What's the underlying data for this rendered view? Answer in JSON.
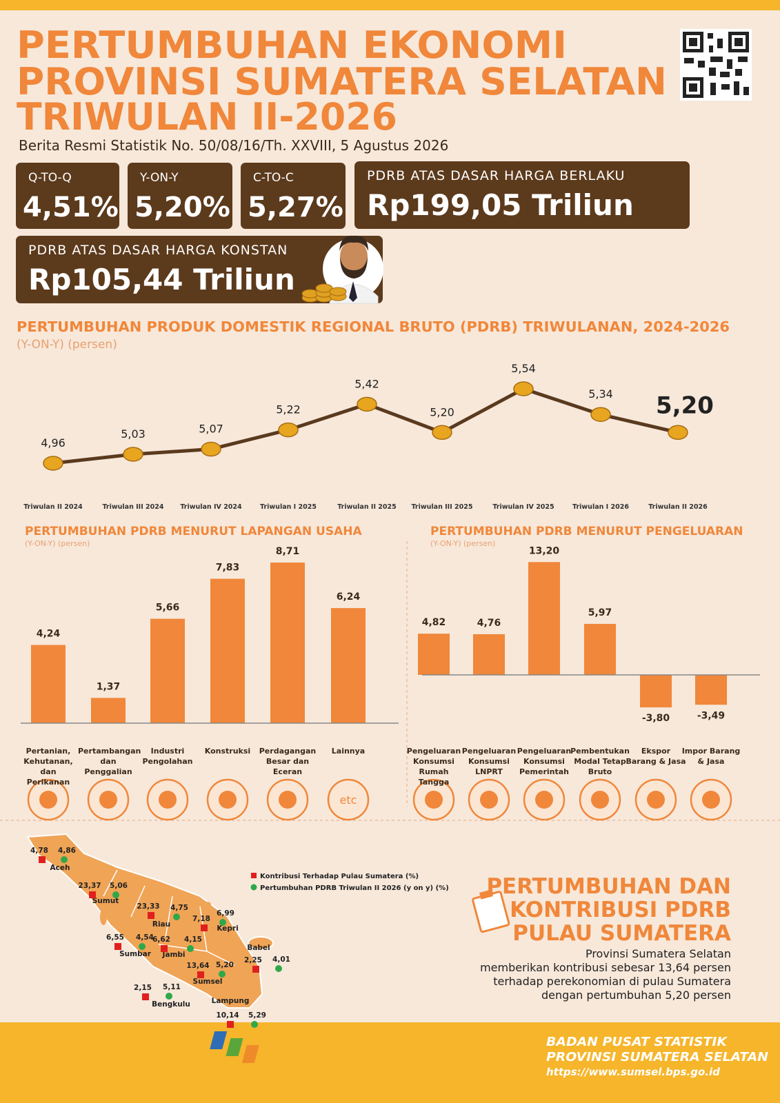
{
  "header": {
    "title": [
      "PERTUMBUHAN EKONOMI",
      "PROVINSI SUMATERA SELATAN",
      "TRIWULAN II-2026"
    ],
    "subtitle": "Berita Resmi Statistik No. 50/08/16/Th. XXVIII, 5 Agustus 2026"
  },
  "cards": [
    {
      "label": "Q-TO-Q",
      "value": "4,51%"
    },
    {
      "label": "Y-ON-Y",
      "value": "5,20%"
    },
    {
      "label": "C-TO-C",
      "value": "5,27%"
    },
    {
      "label": "PDRB ATAS DASAR HARGA BERLAKU",
      "value": "Rp199,05 Triliun"
    },
    {
      "label": "PDRB ATAS DASAR HARGA KONSTAN",
      "value": "Rp105,44 Triliun"
    }
  ],
  "chart_data": [
    {
      "type": "line",
      "title": "PERTUMBUHAN PRODUK DOMESTIK REGIONAL BRUTO (PDRB) TRIWULANAN, 2024-2026",
      "subtitle": "(Y-ON-Y) (persen)",
      "categories": [
        "Triwulan II 2024",
        "Triwulan III 2024",
        "Triwulan IV 2024",
        "Triwulan I 2025",
        "Triwulan II 2025",
        "Triwulan III 2025",
        "Triwulan IV 2025",
        "Triwulan I 2026",
        "Triwulan II 2026"
      ],
      "values": [
        4.96,
        5.03,
        5.07,
        5.22,
        5.42,
        5.2,
        5.54,
        5.34,
        5.2
      ],
      "value_labels": [
        "4,96",
        "5,03",
        "5,07",
        "5,22",
        "5,42",
        "5,20",
        "5,54",
        "5,34",
        "5,20"
      ],
      "color": "#5a3a1e"
    },
    {
      "type": "bar",
      "title": "PERTUMBUHAN PDRB MENURUT LAPANGAN USAHA",
      "subtitle": "(Y-ON-Y) (persen)",
      "categories": [
        "Pertanian, Kehutanan, dan Perikanan",
        "Pertambangan dan Penggalian",
        "Industri Pengolahan",
        "Konstruksi",
        "Perdagangan Besar dan Eceran",
        "Lainnya"
      ],
      "values": [
        4.24,
        1.37,
        5.66,
        7.83,
        8.71,
        6.24
      ],
      "value_labels": [
        "4,24",
        "1,37",
        "5,66",
        "7,83",
        "8,71",
        "6,24"
      ],
      "icon_label": "etc",
      "color": "#f0873a"
    },
    {
      "type": "bar",
      "title": "PERTUMBUHAN PDRB MENURUT PENGELUARAN",
      "subtitle": "(Y-ON-Y) (persen)",
      "categories": [
        "Pengeluaran Konsumsi Rumah Tangga",
        "Pengeluaran Konsumsi LNPRT",
        "Pengeluaran Konsumsi Pemerintah",
        "Pembentukan Modal Tetap Bruto",
        "Ekspor Barang & Jasa",
        "Impor Barang & Jasa"
      ],
      "values": [
        4.82,
        4.76,
        13.2,
        5.97,
        -3.8,
        -3.49
      ],
      "value_labels": [
        "4,82",
        "4,76",
        "13,20",
        "5,97",
        "-3,80",
        "-3,49"
      ],
      "color": "#f0873a"
    }
  ],
  "map": {
    "legend": [
      "Kontribusi Terhadap Pulau Sumatera (%)",
      "Pertumbuhan PDRB Triwulan II 2026 (y on y) (%)"
    ],
    "provinces": [
      {
        "name": "Aceh",
        "contribution": "4,78",
        "growth": "4,86"
      },
      {
        "name": "Sumut",
        "contribution": "23,37",
        "growth": "5,06"
      },
      {
        "name": "Riau",
        "contribution": "23,33",
        "growth": "4,75"
      },
      {
        "name": "Kepri",
        "contribution": "7,18",
        "growth": "6,99"
      },
      {
        "name": "Sumbar",
        "contribution": "6,55",
        "growth": "4,54"
      },
      {
        "name": "Jambi",
        "contribution": "6,62",
        "growth": "4,15"
      },
      {
        "name": "Sumsel",
        "contribution": "13,64",
        "growth": "5,20"
      },
      {
        "name": "Babel",
        "contribution": "2,25",
        "growth": "4,01"
      },
      {
        "name": "Bengkulu",
        "contribution": "2,15",
        "growth": "5,11"
      },
      {
        "name": "Lampung",
        "contribution": "10,14",
        "growth": "5,29"
      }
    ]
  },
  "summary": {
    "title": [
      "PERTUMBUHAN DAN",
      "KONTRIBUSI PDRB",
      "PULAU SUMATERA"
    ],
    "text": [
      "Provinsi  Sumatera Selatan",
      "memberikan kontribusi sebesar 13,64 persen",
      "terhadap perekonomian di pulau Sumatera",
      "dengan pertumbuhan 5,20 persen"
    ]
  },
  "footer": {
    "lines": [
      "BADAN PUSAT STATISTIK",
      "PROVINSI SUMATERA SELATAN"
    ],
    "url": "https://www.sumsel.bps.go.id"
  }
}
